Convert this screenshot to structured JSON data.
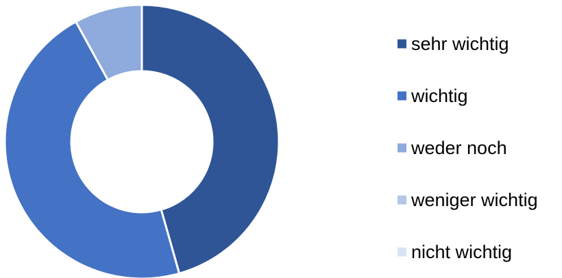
{
  "chart_data": {
    "type": "pie",
    "variant": "donut",
    "title": "",
    "categories": [
      "sehr wichtig",
      "wichtig",
      "weder noch",
      "weniger wichtig",
      "nicht wichtig"
    ],
    "values": [
      45.6,
      46.4,
      8.0,
      0,
      0
    ],
    "unit": "%",
    "legend_position": "right",
    "colors": [
      "#2F5597",
      "#4472C4",
      "#8FAADC",
      "#B4C7E7",
      "#DAE3F3"
    ]
  }
}
